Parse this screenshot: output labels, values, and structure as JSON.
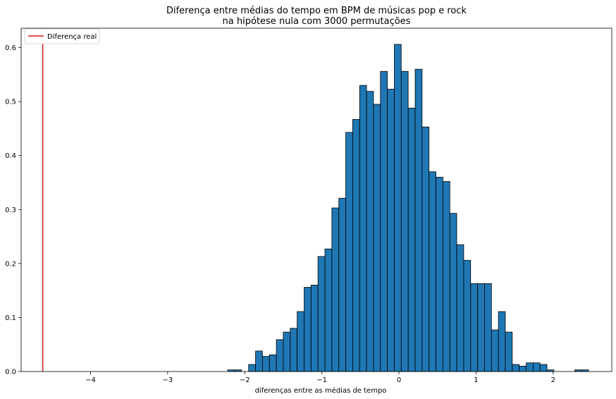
{
  "chart_data": {
    "type": "bar",
    "title": "Diferença entre médias do tempo em BPM de músicas pop e rock",
    "subtitle": "na hipótese nula com 3000 permutações",
    "xlabel": "diferenças entre as médias de tempo",
    "ylabel": "",
    "xlim": [
      -4.9,
      2.76
    ],
    "ylim": [
      0,
      0.636
    ],
    "xticks": [
      -4,
      -3,
      -2,
      -1,
      0,
      1,
      2
    ],
    "xtick_labels": [
      "−4",
      "−3",
      "−2",
      "−1",
      "0",
      "1",
      "2"
    ],
    "yticks": [
      0.0,
      0.1,
      0.2,
      0.3,
      0.4,
      0.5,
      0.6
    ],
    "ytick_labels": [
      "0.0",
      "0.1",
      "0.2",
      "0.3",
      "0.4",
      "0.5",
      "0.6"
    ],
    "bin_width": 0.0895,
    "bins": [
      {
        "x0": -2.22,
        "density": 0.003
      },
      {
        "x0": -2.13,
        "density": 0.003
      },
      {
        "x0": -1.95,
        "density": 0.013
      },
      {
        "x0": -1.86,
        "density": 0.038
      },
      {
        "x0": -1.77,
        "density": 0.028
      },
      {
        "x0": -1.68,
        "density": 0.031
      },
      {
        "x0": -1.59,
        "density": 0.059
      },
      {
        "x0": -1.5,
        "density": 0.073
      },
      {
        "x0": -1.41,
        "density": 0.08
      },
      {
        "x0": -1.32,
        "density": 0.111
      },
      {
        "x0": -1.23,
        "density": 0.156
      },
      {
        "x0": -1.14,
        "density": 0.16
      },
      {
        "x0": -1.05,
        "density": 0.213
      },
      {
        "x0": -0.96,
        "density": 0.227
      },
      {
        "x0": -0.87,
        "density": 0.303
      },
      {
        "x0": -0.78,
        "density": 0.321
      },
      {
        "x0": -0.69,
        "density": 0.443
      },
      {
        "x0": -0.6,
        "density": 0.467
      },
      {
        "x0": -0.51,
        "density": 0.53
      },
      {
        "x0": -0.42,
        "density": 0.519
      },
      {
        "x0": -0.33,
        "density": 0.495
      },
      {
        "x0": -0.24,
        "density": 0.556
      },
      {
        "x0": -0.15,
        "density": 0.523
      },
      {
        "x0": -0.06,
        "density": 0.606
      },
      {
        "x0": 0.03,
        "density": 0.556
      },
      {
        "x0": 0.12,
        "density": 0.488
      },
      {
        "x0": 0.21,
        "density": 0.56
      },
      {
        "x0": 0.3,
        "density": 0.453
      },
      {
        "x0": 0.39,
        "density": 0.37
      },
      {
        "x0": 0.48,
        "density": 0.36
      },
      {
        "x0": 0.57,
        "density": 0.352
      },
      {
        "x0": 0.66,
        "density": 0.293
      },
      {
        "x0": 0.75,
        "density": 0.235
      },
      {
        "x0": 0.84,
        "density": 0.206
      },
      {
        "x0": 0.93,
        "density": 0.163
      },
      {
        "x0": 1.02,
        "density": 0.163
      },
      {
        "x0": 1.11,
        "density": 0.163
      },
      {
        "x0": 1.2,
        "density": 0.077
      },
      {
        "x0": 1.29,
        "density": 0.111
      },
      {
        "x0": 1.38,
        "density": 0.073
      },
      {
        "x0": 1.47,
        "density": 0.013
      },
      {
        "x0": 1.56,
        "density": 0.01
      },
      {
        "x0": 1.65,
        "density": 0.016
      },
      {
        "x0": 1.74,
        "density": 0.016
      },
      {
        "x0": 1.83,
        "density": 0.013
      },
      {
        "x0": 1.92,
        "density": 0.003
      },
      {
        "x0": 2.28,
        "density": 0.003
      },
      {
        "x0": 2.37,
        "density": 0.003
      }
    ],
    "bar_color": "#1f77b4",
    "bar_edge_color": "#000000",
    "reference_line": {
      "name": "Diferença real",
      "x": -4.62,
      "color": "#e41a1c"
    },
    "legend": {
      "placement": "top-left",
      "entries": [
        "Diferença real"
      ]
    },
    "grid": false
  }
}
